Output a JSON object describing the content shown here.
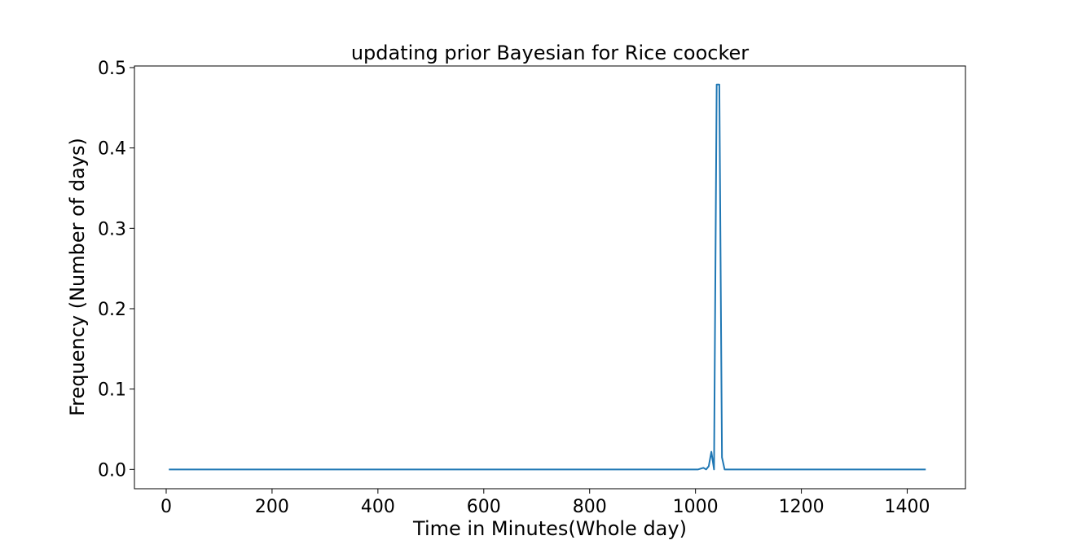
{
  "chart_data": {
    "type": "line",
    "title": "updating prior Bayesian for Rice coocker",
    "xlabel": "Time in Minutes(Whole day)",
    "ylabel": "Frequency (Number of days)",
    "xlim": [
      -60,
      1510
    ],
    "ylim": [
      -0.024,
      0.502
    ],
    "xticks": [
      0,
      200,
      400,
      600,
      800,
      1000,
      1200,
      1400
    ],
    "xtick_labels": [
      "0",
      "200",
      "400",
      "600",
      "800",
      "1000",
      "1200",
      "1400"
    ],
    "yticks": [
      0.0,
      0.1,
      0.2,
      0.3,
      0.4,
      0.5
    ],
    "ytick_labels": [
      "0.0",
      "0.1",
      "0.2",
      "0.3",
      "0.4",
      "0.5"
    ],
    "grid": false,
    "series": [
      {
        "color": "#1f77b4",
        "x": [
          5,
          1005,
          1015,
          1020,
          1025,
          1030,
          1035,
          1040,
          1045,
          1050,
          1055,
          1435
        ],
        "y": [
          0.0,
          0.0,
          0.002,
          0.0,
          0.004,
          0.022,
          0.0,
          0.479,
          0.479,
          0.015,
          0.0,
          0.0
        ]
      }
    ]
  }
}
